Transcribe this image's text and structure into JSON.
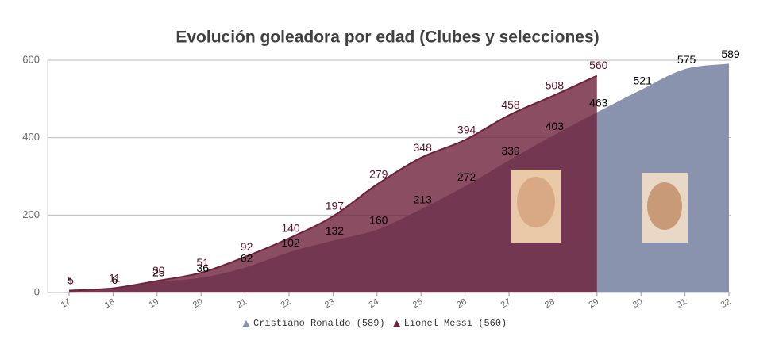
{
  "chart_data": {
    "type": "area",
    "title": "Evolución goleadora por edad (Clubes y selecciones)",
    "categories": [
      "17",
      "18",
      "19",
      "20",
      "21",
      "22",
      "23",
      "24",
      "25",
      "26",
      "27",
      "28",
      "29",
      "30",
      "31",
      "32"
    ],
    "series": [
      {
        "name": "Cristiano Ronaldo (589)",
        "color": "#8a93ad",
        "label_color": "#000000",
        "values": [
          1,
          6,
          25,
          36,
          62,
          102,
          132,
          160,
          213,
          272,
          339,
          403,
          463,
          521,
          575,
          589
        ]
      },
      {
        "name": "Lionel Messi (560)",
        "color": "#6e2039",
        "label_color": "#5a0f25",
        "values": [
          5,
          11,
          30,
          51,
          92,
          140,
          197,
          279,
          348,
          394,
          458,
          508,
          560,
          null,
          null,
          null
        ]
      }
    ],
    "ylim": [
      0,
      600
    ],
    "yticks": [
      0,
      200,
      400,
      600
    ],
    "grid": true
  }
}
